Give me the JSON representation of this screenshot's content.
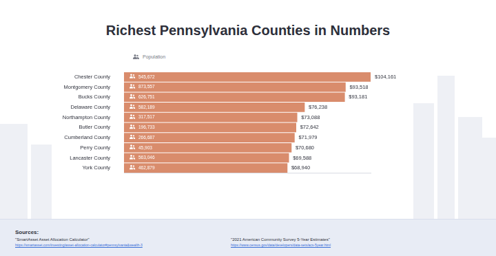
{
  "chart_data": {
    "type": "bar",
    "title": "Richest Pennsylvania Counties in Numbers",
    "orientation": "horizontal",
    "categories": [
      "Chester County",
      "Montgomery County",
      "Bucks County",
      "Delaware County",
      "Northampton County",
      "Butler County",
      "Cumberland County",
      "Perry County",
      "Lancaster County",
      "York County"
    ],
    "values": [
      104161,
      93518,
      93181,
      76238,
      73088,
      72642,
      71979,
      70680,
      69588,
      68940
    ],
    "value_labels": [
      "$104,161",
      "$93,518",
      "$93,181",
      "$76,238",
      "$73,088",
      "$72,642",
      "$71,979",
      "$70,680",
      "$69,588",
      "$68,940"
    ],
    "population": {
      "name": "Population",
      "values": [
        545672,
        873557,
        626751,
        582189,
        317517,
        196733,
        266687,
        45903,
        563046,
        462879
      ],
      "value_labels": [
        "545,672",
        "873,557",
        "626,751",
        "582,189",
        "317,517",
        "196,733",
        "266,687",
        "45,903",
        "563,046",
        "462,879"
      ]
    },
    "color": "#d98c6c",
    "xlim": [
      0,
      104161
    ],
    "grid": false,
    "data_labels": true,
    "tick_labels": "y"
  },
  "sources": {
    "title": "Sources:",
    "items": [
      {
        "title": "\"SmartAsset Asset Allocation Calculator\"",
        "url": "https://smartasset.com/investing/asset-allocation-calculator#pennsylvania&wealth-3"
      },
      {
        "title": "\"2021 American Community Survey 5-Year Estimates\"",
        "url": "https://www.census.gov/data/developers/data-sets/acs-5year.html"
      }
    ]
  }
}
